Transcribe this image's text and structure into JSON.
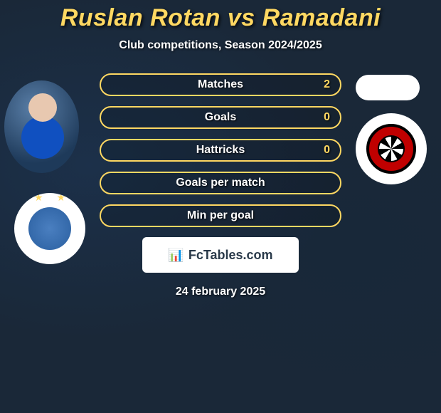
{
  "header": {
    "title": "Ruslan Rotan vs Ramadani",
    "subtitle": "Club competitions, Season 2024/2025"
  },
  "stats": [
    {
      "label": "Matches",
      "value": "2"
    },
    {
      "label": "Goals",
      "value": "0"
    },
    {
      "label": "Hattricks",
      "value": "0"
    },
    {
      "label": "Goals per match",
      "value": ""
    },
    {
      "label": "Min per goal",
      "value": ""
    }
  ],
  "footer": {
    "brand_icon": "📊",
    "brand_text": "FcTables.com",
    "date": "24 february 2025"
  },
  "style": {
    "accent_color": "#ffd862",
    "text_color": "#ffffff",
    "bg_color": "#1a2838",
    "pill_border_color": "#ffd862",
    "badge_bg": "#ffffff",
    "badge_text_color": "#2a3a4a",
    "title_fontsize": 34,
    "subtitle_fontsize": 16,
    "stat_fontsize": 16
  }
}
